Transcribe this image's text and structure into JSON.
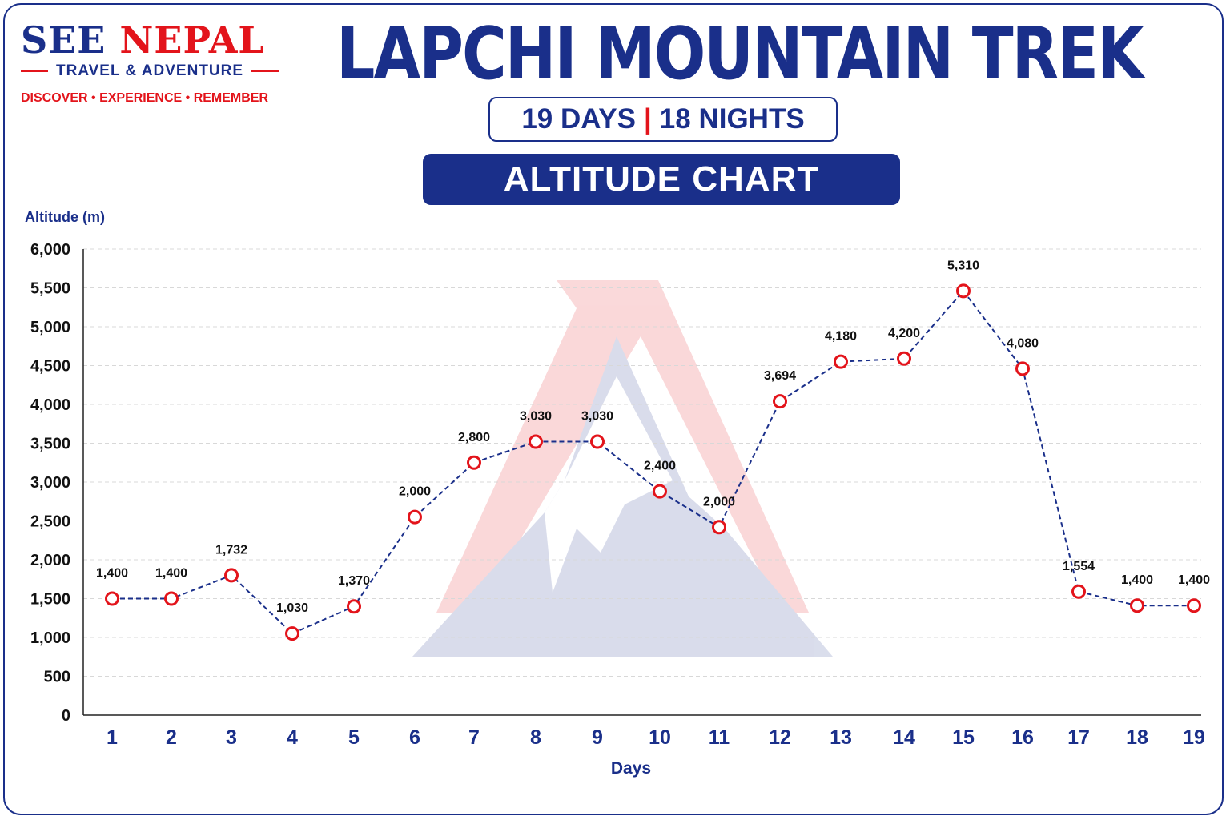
{
  "brand": {
    "name_part1": "SEE",
    "name_part2": "NEPAL",
    "subtitle": "TRAVEL & ADVENTURE",
    "tagline": "DISCOVER • EXPERIENCE • REMEMBER"
  },
  "title": "LAPCHI MOUNTAIN TREK",
  "duration": {
    "days": "19 DAYS",
    "separator": "|",
    "nights": "18 NIGHTS"
  },
  "chart_label": "ALTITUDE CHART",
  "colors": {
    "navy": "#1a2f8a",
    "red": "#e3141b",
    "grid": "#d8d8d8"
  },
  "chart_data": {
    "type": "line",
    "ylabel": "Altitude (m)",
    "xlabel": "Days",
    "ylim": [
      0,
      6000
    ],
    "y_ticks": [
      0,
      500,
      1000,
      1500,
      2000,
      2500,
      3000,
      3500,
      4000,
      4500,
      5000,
      5500,
      6000
    ],
    "y_tick_labels": [
      "0",
      "500",
      "1,000",
      "1,500",
      "2,000",
      "2,500",
      "3,000",
      "3,500",
      "4,000",
      "4,500",
      "5,000",
      "5,500",
      "6,000"
    ],
    "grid": "horizontal dashed",
    "categories": [
      "1",
      "2",
      "3",
      "4",
      "5",
      "6",
      "7",
      "8",
      "9",
      "10",
      "11",
      "12",
      "13",
      "14",
      "15",
      "16",
      "17",
      "18",
      "19"
    ],
    "series": [
      {
        "values": [
          1400,
          1400,
          1732,
          1030,
          1370,
          2000,
          2800,
          3030,
          3030,
          2400,
          2000,
          3694,
          4180,
          4200,
          5310,
          4080,
          1554,
          1400,
          1400
        ],
        "labels": [
          "1,400",
          "1,400",
          "1,732",
          "1,030",
          "1,370",
          "2,000",
          "2,800",
          "3,030",
          "3,030",
          "2,400",
          "2,000",
          "3,694",
          "4,180",
          "4,200",
          "5,310",
          "4,080",
          "1,554",
          "1,400",
          "1,400"
        ],
        "plotted_levels": [
          1500,
          1500,
          1800,
          1050,
          1400,
          2550,
          3250,
          3520,
          3520,
          2880,
          2420,
          4040,
          4550,
          4590,
          5460,
          4460,
          1590,
          1410,
          1410
        ]
      }
    ]
  }
}
